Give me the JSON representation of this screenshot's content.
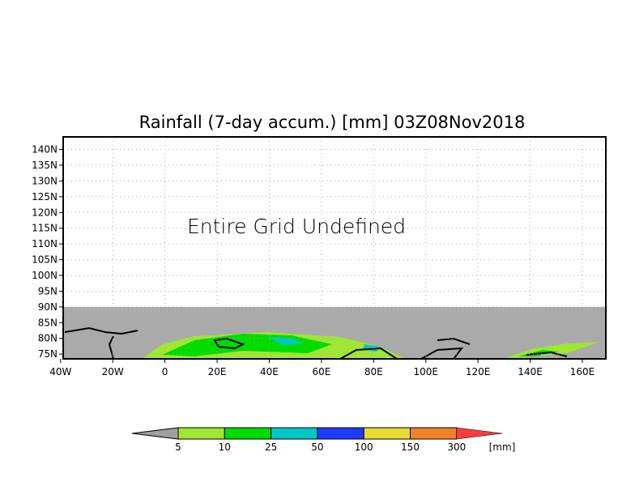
{
  "chart_data": {
    "type": "heatmap",
    "title": "Rainfall (7-day accum.) [mm] 03Z08Nov2018",
    "annotation": "Entire Grid Undefined",
    "x_ticks": [
      "40W",
      "20W",
      "0",
      "20E",
      "40E",
      "60E",
      "80E",
      "100E",
      "120E",
      "140E",
      "160E"
    ],
    "x_tick_values": [
      -40,
      -20,
      0,
      20,
      40,
      60,
      80,
      100,
      120,
      140,
      160
    ],
    "y_ticks": [
      "75N",
      "80N",
      "85N",
      "90N",
      "95N",
      "100N",
      "105N",
      "110N",
      "115N",
      "120N",
      "125N",
      "130N",
      "135N",
      "140N"
    ],
    "y_tick_values": [
      75,
      80,
      85,
      90,
      95,
      100,
      105,
      110,
      115,
      120,
      125,
      130,
      135,
      140
    ],
    "xlim": [
      -39,
      169
    ],
    "ylim": [
      73.5,
      144
    ],
    "undefined_above_lat": 90,
    "grid": true,
    "colorbar": {
      "levels": [
        "5",
        "10",
        "25",
        "50",
        "100",
        "150",
        "300"
      ],
      "units": "[mm]",
      "colors": [
        "#a0a0a0",
        "#a0e632",
        "#00dc00",
        "#00c8c8",
        "#1e3cff",
        "#e6dc32",
        "#f08228",
        "#fa3c3c"
      ]
    },
    "colors": {
      "undefined": "#aaaaaa",
      "frame": "#000000",
      "grid": "#aaaaaa"
    }
  }
}
